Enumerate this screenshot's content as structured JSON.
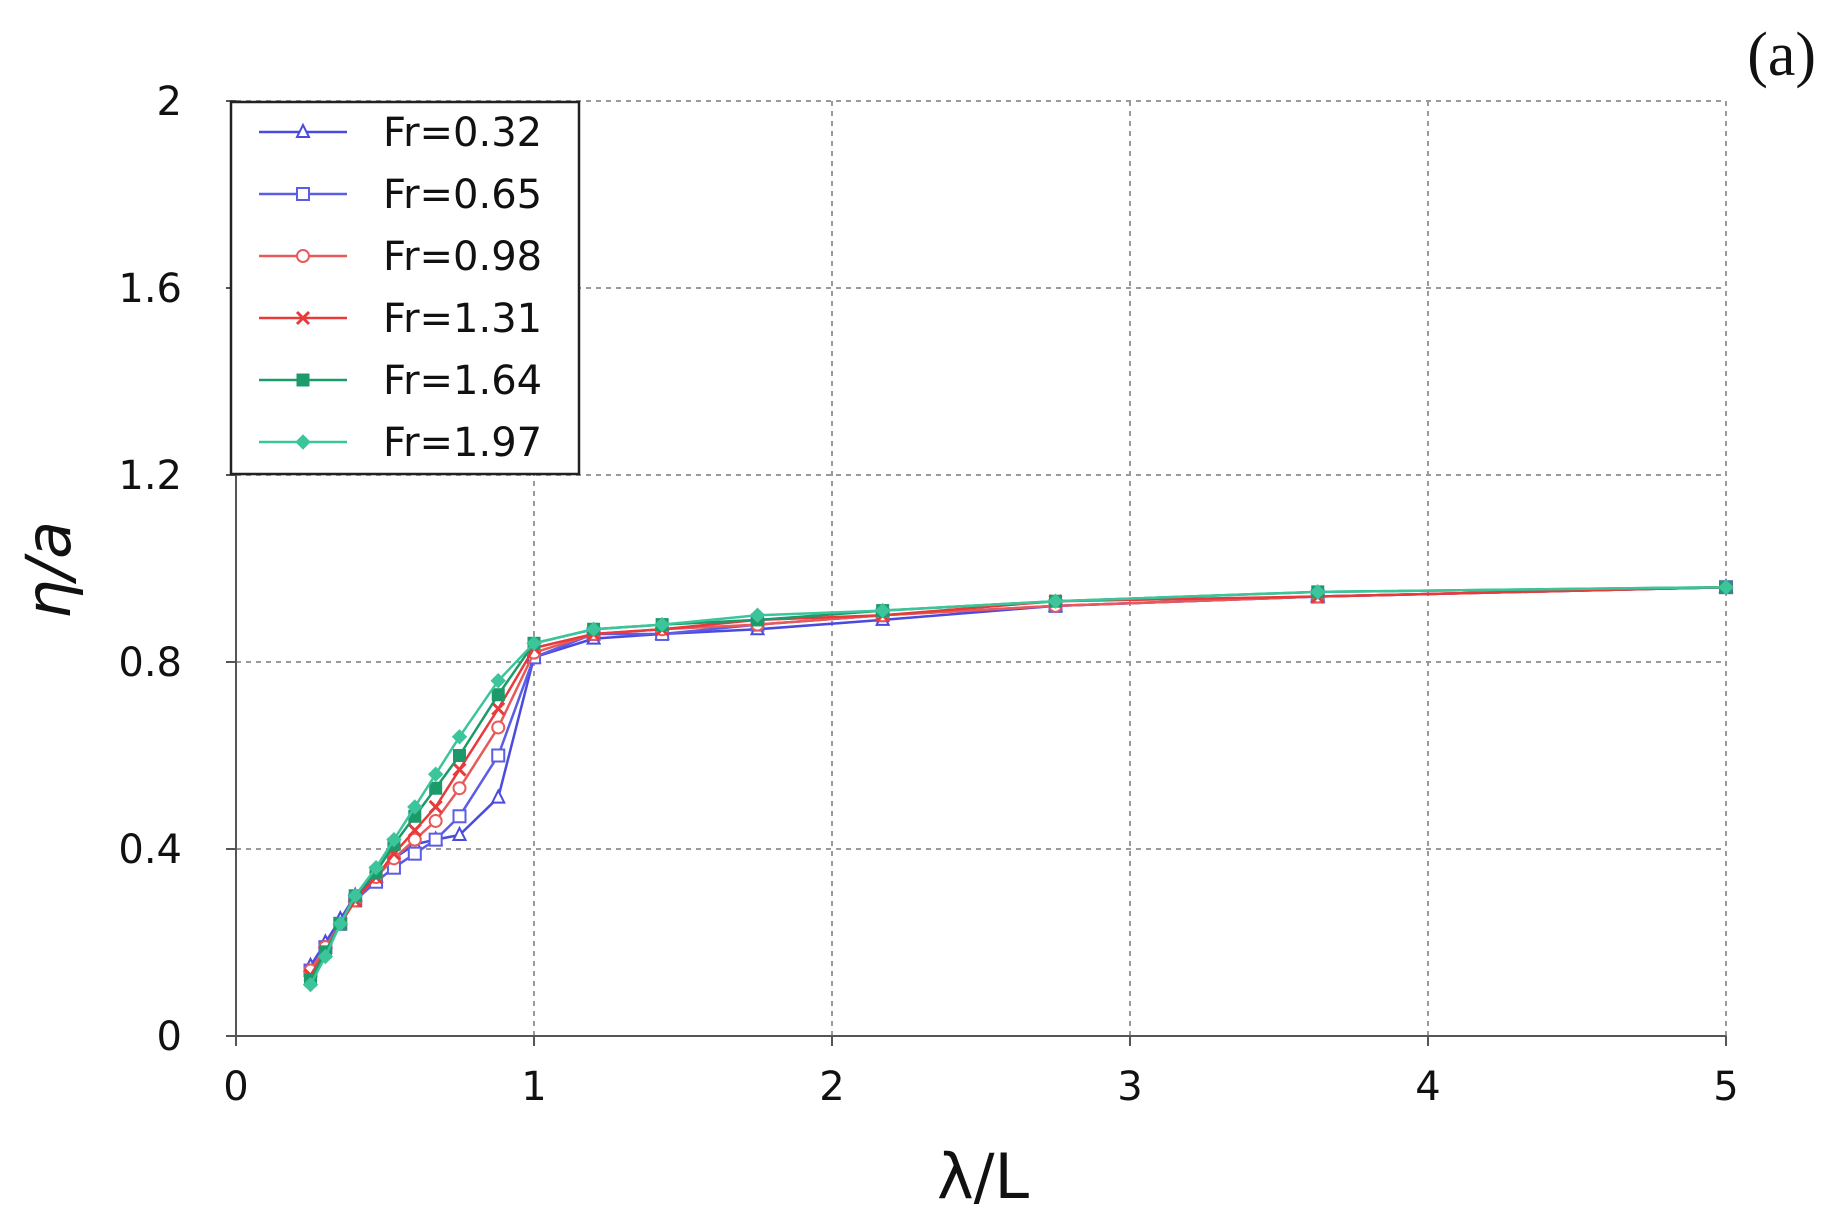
{
  "panel_label": "(a)",
  "chart_data": {
    "type": "line",
    "title": "",
    "xlabel": "λ/L",
    "ylabel": "η/a",
    "xlim": [
      0,
      5
    ],
    "ylim": [
      0,
      2
    ],
    "xticks": [
      "0",
      "1",
      "2",
      "3",
      "4",
      "5"
    ],
    "yticks": [
      "0",
      "0.4",
      "0.8",
      "1.2",
      "1.6",
      "2"
    ],
    "grid": true,
    "legend_position": "top-left",
    "series": [
      {
        "name": "Fr=0.32",
        "color": "#4a4adf",
        "marker": "triangle",
        "x": [
          0.25,
          0.3,
          0.35,
          0.4,
          0.47,
          0.53,
          0.6,
          0.67,
          0.75,
          0.88,
          1.0,
          1.2,
          1.43,
          1.75,
          2.17,
          2.75,
          3.63,
          5.0
        ],
        "y": [
          0.15,
          0.2,
          0.25,
          0.3,
          0.34,
          0.38,
          0.41,
          0.42,
          0.43,
          0.51,
          0.81,
          0.85,
          0.86,
          0.87,
          0.89,
          0.92,
          0.94,
          0.96
        ]
      },
      {
        "name": "Fr=0.65",
        "color": "#5c5ce6",
        "marker": "square",
        "x": [
          0.25,
          0.3,
          0.35,
          0.4,
          0.47,
          0.53,
          0.6,
          0.67,
          0.75,
          0.88,
          1.0,
          1.2,
          1.43,
          1.75,
          2.17,
          2.75,
          3.63,
          5.0
        ],
        "y": [
          0.14,
          0.19,
          0.24,
          0.29,
          0.33,
          0.36,
          0.39,
          0.42,
          0.47,
          0.6,
          0.81,
          0.86,
          0.86,
          0.88,
          0.9,
          0.92,
          0.94,
          0.96
        ]
      },
      {
        "name": "Fr=0.98",
        "color": "#e85a5a",
        "marker": "circle",
        "x": [
          0.25,
          0.3,
          0.35,
          0.4,
          0.47,
          0.53,
          0.6,
          0.67,
          0.75,
          0.88,
          1.0,
          1.2,
          1.43,
          1.75,
          2.17,
          2.75,
          3.63,
          5.0
        ],
        "y": [
          0.14,
          0.19,
          0.24,
          0.29,
          0.34,
          0.38,
          0.42,
          0.46,
          0.53,
          0.66,
          0.82,
          0.86,
          0.87,
          0.88,
          0.9,
          0.92,
          0.94,
          0.96
        ]
      },
      {
        "name": "Fr=1.31",
        "color": "#e83a3a",
        "marker": "x",
        "x": [
          0.25,
          0.3,
          0.35,
          0.4,
          0.47,
          0.53,
          0.6,
          0.67,
          0.75,
          0.88,
          1.0,
          1.2,
          1.43,
          1.75,
          2.17,
          2.75,
          3.63,
          5.0
        ],
        "y": [
          0.13,
          0.18,
          0.24,
          0.29,
          0.34,
          0.39,
          0.44,
          0.49,
          0.57,
          0.7,
          0.83,
          0.86,
          0.87,
          0.89,
          0.9,
          0.93,
          0.94,
          0.96
        ]
      },
      {
        "name": "Fr=1.64",
        "color": "#1c9a6a",
        "marker": "filled-square",
        "x": [
          0.25,
          0.3,
          0.35,
          0.4,
          0.47,
          0.53,
          0.6,
          0.67,
          0.75,
          0.88,
          1.0,
          1.2,
          1.43,
          1.75,
          2.17,
          2.75,
          3.63,
          5.0
        ],
        "y": [
          0.12,
          0.18,
          0.24,
          0.3,
          0.35,
          0.41,
          0.47,
          0.53,
          0.6,
          0.73,
          0.84,
          0.87,
          0.88,
          0.89,
          0.91,
          0.93,
          0.95,
          0.96
        ]
      },
      {
        "name": "Fr=1.97",
        "color": "#3cc49a",
        "marker": "diamond",
        "x": [
          0.25,
          0.3,
          0.35,
          0.4,
          0.47,
          0.53,
          0.6,
          0.67,
          0.75,
          0.88,
          1.0,
          1.2,
          1.43,
          1.75,
          2.17,
          2.75,
          3.63,
          5.0
        ],
        "y": [
          0.11,
          0.17,
          0.24,
          0.3,
          0.36,
          0.42,
          0.49,
          0.56,
          0.64,
          0.76,
          0.84,
          0.87,
          0.88,
          0.9,
          0.91,
          0.93,
          0.95,
          0.96
        ]
      }
    ]
  }
}
